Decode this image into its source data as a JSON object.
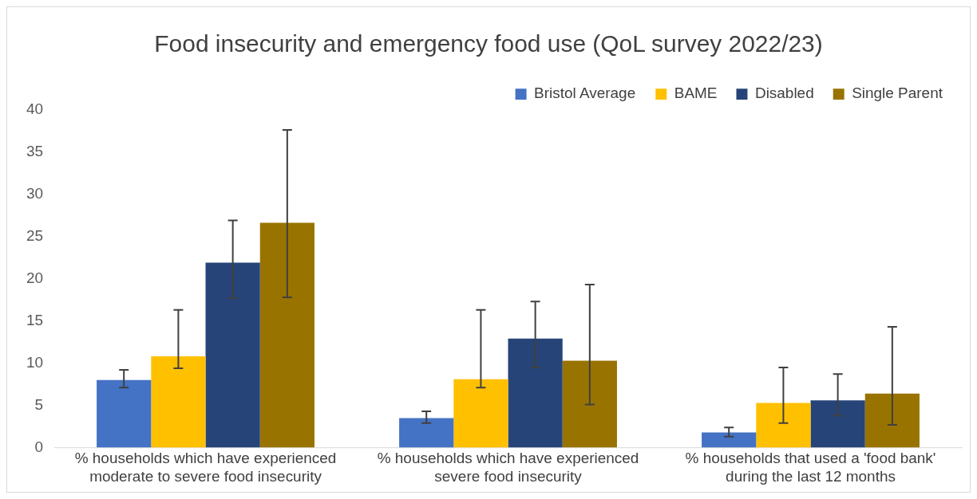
{
  "chart_data": {
    "type": "bar",
    "title": "Food insecurity and emergency food use (QoL survey 2022/23)",
    "categories": [
      "% households which have experienced moderate to severe food insecurity",
      "% households which have experienced severe food insecurity",
      "% households that used a 'food bank' during the last 12 months"
    ],
    "series": [
      {
        "name": "Bristol Average",
        "color": "#4472c4",
        "values": [
          8.0,
          3.5,
          1.8
        ],
        "errors": [
          [
            7.1,
            9.2
          ],
          [
            2.9,
            4.3
          ],
          [
            1.3,
            2.4
          ]
        ]
      },
      {
        "name": "BAME",
        "color": "#ffc000",
        "values": [
          10.8,
          8.1,
          5.3
        ],
        "errors": [
          [
            9.4,
            16.3
          ],
          [
            7.1,
            16.3
          ],
          [
            2.9,
            9.5
          ]
        ]
      },
      {
        "name": "Disabled",
        "color": "#264478",
        "values": [
          21.9,
          12.9,
          5.6
        ],
        "errors": [
          [
            17.7,
            26.9
          ],
          [
            9.5,
            17.3
          ],
          [
            3.8,
            8.7
          ]
        ]
      },
      {
        "name": "Single Parent",
        "color": "#997300",
        "values": [
          26.6,
          10.3,
          6.4
        ],
        "errors": [
          [
            17.8,
            37.6
          ],
          [
            5.1,
            19.3
          ],
          [
            2.7,
            14.3
          ]
        ]
      }
    ],
    "ylim": [
      0,
      40
    ],
    "yticks": [
      0,
      5,
      10,
      15,
      20,
      25,
      30,
      35,
      40
    ],
    "grid": false,
    "legend": "top right"
  }
}
